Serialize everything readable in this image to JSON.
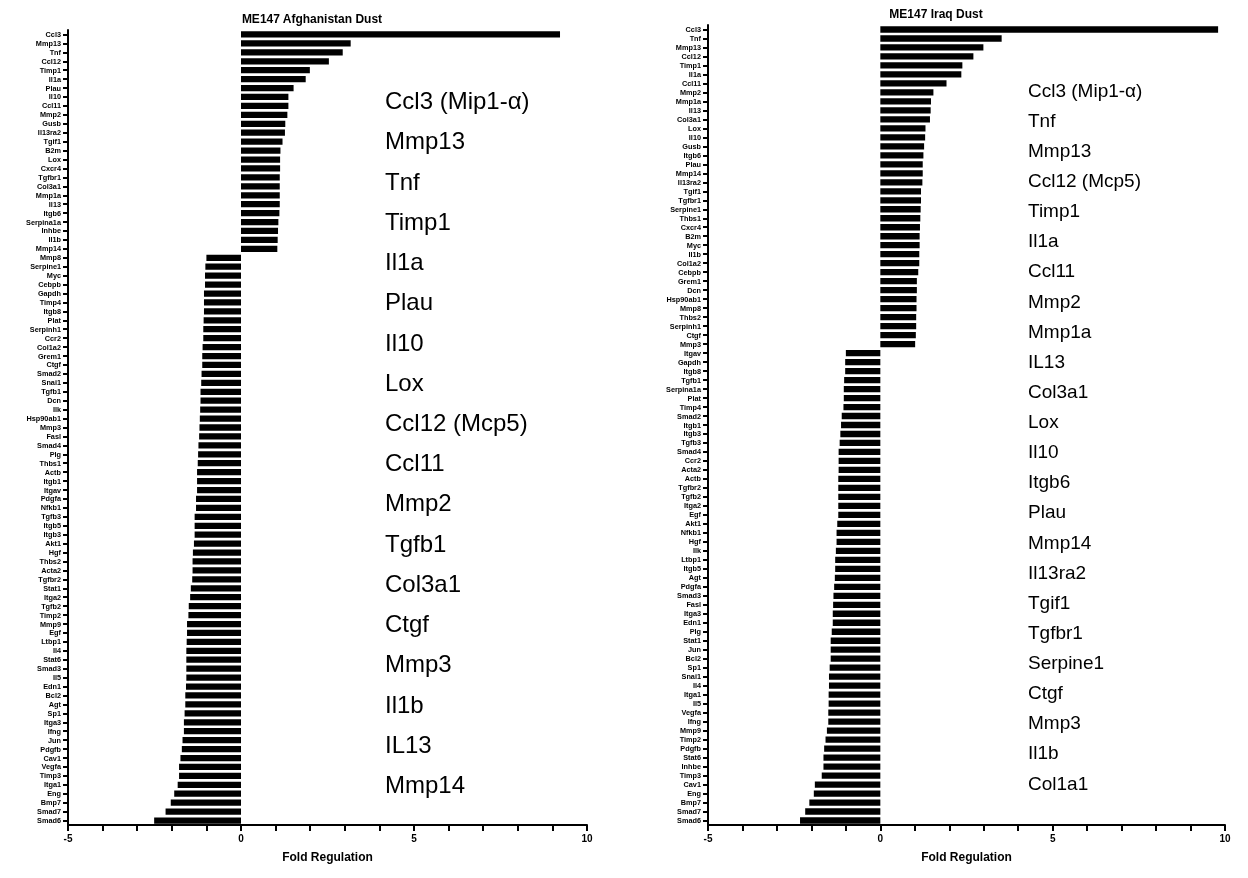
{
  "chart_data": [
    {
      "type": "bar",
      "orientation": "horizontal",
      "title": "ME147 Afghanistan Dust",
      "xlabel": "Fold Regulation",
      "color": "#000000",
      "xlim": [
        -5,
        10
      ],
      "xticks": [
        -5,
        {
          "value": -4,
          "label": null
        },
        {
          "value": -3,
          "label": null
        },
        {
          "value": -2,
          "label": null
        },
        {
          "value": -1,
          "label": null
        },
        0,
        {
          "value": 1,
          "label": null
        },
        {
          "value": 2,
          "label": null
        },
        {
          "value": 3,
          "label": null
        },
        {
          "value": 4,
          "label": null
        },
        5,
        {
          "value": 6,
          "label": null
        },
        {
          "value": 7,
          "label": null
        },
        {
          "value": 8,
          "label": null
        },
        {
          "value": 9,
          "label": null
        },
        10
      ],
      "categories": [
        "Ccl3",
        "Mmp13",
        "Tnf",
        "Ccl12",
        "Timp1",
        "Il1a",
        "Plau",
        "Il10",
        "Ccl11",
        "Mmp2",
        "Gusb",
        "Il13ra2",
        "Tgif1",
        "B2m",
        "Lox",
        "Cxcr4",
        "Tgfbr1",
        "Col3a1",
        "Mmp1a",
        "Il13",
        "Itgb6",
        "Serpina1a",
        "Inhbe",
        "Il1b",
        "Mmp14",
        "Mmp8",
        "Serpine1",
        "Myc",
        "Cebpb",
        "Gapdh",
        "Timp4",
        "Itgb8",
        "Plat",
        "Serpinh1",
        "Ccr2",
        "Col1a2",
        "Grem1",
        "Ctgf",
        "Smad2",
        "Snai1",
        "Tgfb1",
        "Dcn",
        "Ilk",
        "Hsp90ab1",
        "Mmp3",
        "Fasl",
        "Smad4",
        "Plg",
        "Thbs1",
        "Actb",
        "Itgb1",
        "Itgav",
        "Pdgfa",
        "Nfkb1",
        "Tgfb3",
        "Itgb5",
        "Itgb3",
        "Akt1",
        "Hgf",
        "Thbs2",
        "Acta2",
        "Tgfbr2",
        "Stat1",
        "Itga2",
        "Tgfb2",
        "Timp2",
        "Mmp9",
        "Egf",
        "Ltbp1",
        "Il4",
        "Stat6",
        "Smad3",
        "Il5",
        "Edn1",
        "Bcl2",
        "Agt",
        "Sp1",
        "Itga3",
        "Ifng",
        "Jun",
        "Pdgfb",
        "Cav1",
        "Vegfa",
        "Timp3",
        "Itga1",
        "Eng",
        "Bmp7",
        "Smad7",
        "Smad6"
      ],
      "values": [
        9.22,
        3.17,
        2.94,
        2.54,
        1.99,
        1.87,
        1.52,
        1.37,
        1.37,
        1.34,
        1.28,
        1.27,
        1.2,
        1.14,
        1.13,
        1.13,
        1.12,
        1.12,
        1.12,
        1.12,
        1.11,
        1.08,
        1.07,
        1.06,
        1.05,
        -1.0,
        -1.03,
        -1.04,
        -1.04,
        -1.07,
        -1.07,
        -1.07,
        -1.08,
        -1.09,
        -1.09,
        -1.11,
        -1.12,
        -1.12,
        -1.14,
        -1.15,
        -1.17,
        -1.17,
        -1.18,
        -1.19,
        -1.2,
        -1.21,
        -1.23,
        -1.24,
        -1.25,
        -1.27,
        -1.27,
        -1.27,
        -1.3,
        -1.3,
        -1.34,
        -1.34,
        -1.34,
        -1.36,
        -1.39,
        -1.4,
        -1.4,
        -1.41,
        -1.45,
        -1.47,
        -1.51,
        -1.52,
        -1.56,
        -1.56,
        -1.57,
        -1.58,
        -1.58,
        -1.58,
        -1.58,
        -1.59,
        -1.61,
        -1.61,
        -1.63,
        -1.65,
        -1.65,
        -1.69,
        -1.71,
        -1.75,
        -1.79,
        -1.79,
        -1.83,
        -1.93,
        -2.03,
        -2.18,
        -2.51
      ],
      "annotations": [
        "Ccl3 (Mip1-α)",
        "Mmp13",
        "Tnf",
        "Timp1",
        "Il1a",
        "Plau",
        "Il10",
        "Lox",
        "Ccl12 (Mcp5)",
        "Ccl11",
        "Mmp2",
        "Tgfb1",
        "Col3a1",
        "Ctgf",
        "Mmp3",
        "Il1b",
        "IL13",
        "Mmp14"
      ]
    },
    {
      "type": "bar",
      "orientation": "horizontal",
      "title": "ME147 Iraq Dust",
      "xlabel": "Fold Regulation",
      "color": "#000000",
      "xlim": [
        -5,
        10
      ],
      "xticks": [
        -5,
        {
          "value": -4,
          "label": null
        },
        {
          "value": -3,
          "label": null
        },
        {
          "value": -2,
          "label": null
        },
        {
          "value": -1,
          "label": null
        },
        0,
        {
          "value": 1,
          "label": null
        },
        {
          "value": 2,
          "label": null
        },
        {
          "value": 3,
          "label": null
        },
        {
          "value": 4,
          "label": null
        },
        5,
        {
          "value": 6,
          "label": null
        },
        {
          "value": 7,
          "label": null
        },
        {
          "value": 8,
          "label": null
        },
        {
          "value": 9,
          "label": null
        },
        10
      ],
      "categories": [
        "Ccl3",
        "Tnf",
        "Mmp13",
        "Ccl12",
        "Timp1",
        "Il1a",
        "Ccl11",
        "Mmp2",
        "Mmp1a",
        "Il13",
        "Col3a1",
        "Lox",
        "Il10",
        "Gusb",
        "Itgb6",
        "Plau",
        "Mmp14",
        "Il13ra2",
        "Tgif1",
        "Tgfbr1",
        "Serpine1",
        "Thbs1",
        "Cxcr4",
        "B2m",
        "Myc",
        "Il1b",
        "Col1a2",
        "Cebpb",
        "Grem1",
        "Dcn",
        "Hsp90ab1",
        "Mmp8",
        "Thbs2",
        "Serpinh1",
        "Ctgf",
        "Mmp3",
        "Itgav",
        "Gapdh",
        "Itgb8",
        "Tgfb1",
        "Serpina1a",
        "Plat",
        "Timp4",
        "Smad2",
        "Itgb1",
        "Itgb3",
        "Tgfb3",
        "Smad4",
        "Ccr2",
        "Acta2",
        "Actb",
        "Tgfbr2",
        "Tgfb2",
        "Itga2",
        "Egf",
        "Akt1",
        "Nfkb1",
        "Hgf",
        "Ilk",
        "Ltbp1",
        "Itgb5",
        "Agt",
        "Pdgfa",
        "Smad3",
        "Fasl",
        "Itga3",
        "Edn1",
        "Plg",
        "Stat1",
        "Jun",
        "Bcl2",
        "Sp1",
        "Snai1",
        "Il4",
        "Itga1",
        "Il5",
        "Vegfa",
        "Ifng",
        "Mmp9",
        "Timp2",
        "Pdgfb",
        "Stat6",
        "Inhbe",
        "Timp3",
        "Cav1",
        "Eng",
        "Bmp7",
        "Smad7",
        "Smad6"
      ],
      "values": [
        9.8,
        3.52,
        2.99,
        2.7,
        2.38,
        2.35,
        1.92,
        1.54,
        1.47,
        1.46,
        1.44,
        1.31,
        1.3,
        1.27,
        1.25,
        1.23,
        1.23,
        1.22,
        1.18,
        1.18,
        1.17,
        1.16,
        1.15,
        1.14,
        1.14,
        1.13,
        1.13,
        1.1,
        1.06,
        1.06,
        1.05,
        1.05,
        1.04,
        1.04,
        1.03,
        1.01,
        -1.0,
        -1.02,
        -1.02,
        -1.05,
        -1.06,
        -1.06,
        -1.07,
        -1.12,
        -1.14,
        -1.16,
        -1.18,
        -1.21,
        -1.21,
        -1.21,
        -1.22,
        -1.22,
        -1.22,
        -1.22,
        -1.22,
        -1.25,
        -1.27,
        -1.27,
        -1.29,
        -1.31,
        -1.31,
        -1.32,
        -1.34,
        -1.36,
        -1.37,
        -1.38,
        -1.38,
        -1.41,
        -1.44,
        -1.44,
        -1.44,
        -1.47,
        -1.49,
        -1.49,
        -1.5,
        -1.5,
        -1.51,
        -1.51,
        -1.55,
        -1.59,
        -1.63,
        -1.65,
        -1.65,
        -1.7,
        -1.9,
        -1.93,
        -2.06,
        -2.18,
        -2.33
      ],
      "annotations": [
        "Ccl3 (Mip1-α)",
        "Tnf",
        "Mmp13",
        "Ccl12 (Mcp5)",
        "Timp1",
        "Il1a",
        "Ccl11",
        "Mmp2",
        "Mmp1a",
        "IL13",
        "Col3a1",
        "Lox",
        "Il10",
        "Itgb6",
        "Plau",
        "Mmp14",
        "Il13ra2",
        "Tgif1",
        "Tgfbr1",
        "Serpine1",
        "Ctgf",
        "Mmp3",
        "Il1b",
        "Col1a1"
      ]
    }
  ]
}
